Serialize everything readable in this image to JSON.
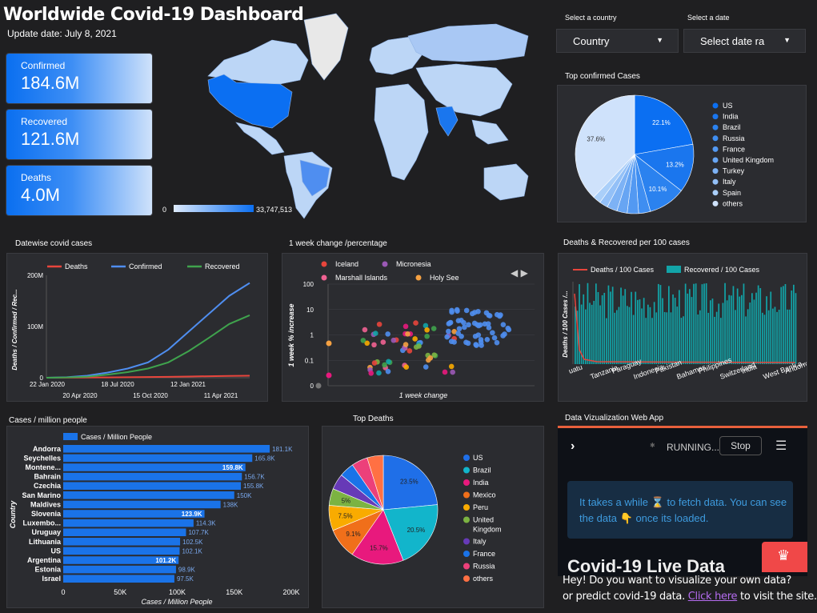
{
  "header": {
    "title": "Worldwide Covid-19 Dashboard",
    "update_date": "Update date:  July 8, 2021"
  },
  "kpis": {
    "confirmed": {
      "label": "Confirmed",
      "value": "184.6M"
    },
    "recovered": {
      "label": "Recovered",
      "value": "121.6M"
    },
    "deaths": {
      "label": "Deaths",
      "value": "4.0M"
    }
  },
  "map": {
    "legend_min": "0",
    "legend_max": "33,747,513"
  },
  "controls": {
    "country_label": "Select a country",
    "country_value": "Country",
    "date_label": "Select a date",
    "date_value": "Select date ra"
  },
  "sections": {
    "top_confirmed": "Top confirmed Cases",
    "datewise": "Datewise covid cases",
    "week_change": "1 week change /percentage",
    "deaths_recovered": "Deaths & Recovered per 100 cases",
    "cases_million": "Cases / million people",
    "top_deaths": "Top Deaths",
    "web_app": "Data Vizualization Web App"
  },
  "web_app": {
    "running": "RUNNING...",
    "stop": "Stop",
    "info_text_1": "It takes a while",
    "info_text_2": "to fetch data. You can",
    "info_text_3": "see the data",
    "info_text_4": "once its loaded.",
    "big_title": "Covid-19 Live Data"
  },
  "footer": {
    "line1": "Hey! Do you want to visualize your own data?",
    "line2": "or predict  covid-19 data.",
    "link": "Click here",
    "line3": "to visit the site."
  },
  "colors": {
    "accent": "#1a73e8",
    "deaths": "#e8453c",
    "confirmed": "#4f8ef0",
    "recovered": "#3fa34d",
    "teal": "#12a4a8"
  },
  "chart_data": [
    {
      "id": "top_confirmed_pie",
      "type": "pie",
      "title": "Top confirmed Cases",
      "labels": [
        "US",
        "India",
        "Brazil",
        "Russia",
        "France",
        "United Kingdom",
        "Turkey",
        "Italy",
        "Spain",
        "others"
      ],
      "values": [
        22.1,
        13.2,
        10.1,
        3.2,
        3.1,
        2.8,
        2.8,
        2.3,
        2.2,
        37.6
      ],
      "value_labels": [
        "22.1%",
        "13.2%",
        "10.1%",
        "",
        "",
        "",
        "",
        "",
        "",
        "37.6%"
      ],
      "colors": [
        "#0b6ff2",
        "#1a76ee",
        "#2b82ef",
        "#3f8ef1",
        "#5399f2",
        "#67a5f3",
        "#7db2f5",
        "#93c0f7",
        "#aacff9",
        "#cfe2fb"
      ]
    },
    {
      "id": "datewise_line",
      "type": "line",
      "title": "Datewise covid cases",
      "ylabel": "Deaths  /  Confirmed  /  Rec...",
      "x_ticks_top": [
        "22 Jan 2020",
        "18 Jul 2020",
        "12 Jan 2021"
      ],
      "x_ticks_bottom": [
        "20 Apr 2020",
        "15 Oct 2020",
        "11 Apr 2021"
      ],
      "y_ticks": [
        "0",
        "100M",
        "200M"
      ],
      "ylim": [
        0,
        200
      ],
      "x": [
        0,
        0.1,
        0.2,
        0.3,
        0.4,
        0.5,
        0.6,
        0.7,
        0.8,
        0.9,
        1.0
      ],
      "series": [
        {
          "name": "Deaths",
          "color": "#e8453c",
          "values": [
            0,
            0.1,
            0.3,
            0.6,
            0.9,
            1.3,
            1.8,
            2.4,
            3.0,
            3.6,
            4.0
          ]
        },
        {
          "name": "Confirmed",
          "color": "#4f8ef0",
          "values": [
            0,
            1,
            4,
            10,
            18,
            30,
            55,
            90,
            125,
            160,
            185
          ]
        },
        {
          "name": "Recovered",
          "color": "#3fa34d",
          "values": [
            0,
            0.5,
            2,
            6,
            11,
            18,
            30,
            52,
            78,
            105,
            122
          ]
        }
      ]
    },
    {
      "id": "week_change_scatter",
      "type": "scatter",
      "title": "1 week change /percentage",
      "xlabel": "1 week change",
      "ylabel": "1 week % increase",
      "y_ticks": [
        "0",
        "0.1",
        "1",
        "10",
        "100"
      ],
      "legend": [
        {
          "name": "Iceland",
          "color": "#e8453c"
        },
        {
          "name": "Micronesia",
          "color": "#9b59b6"
        },
        {
          "name": "Marshall Islands",
          "color": "#f06292"
        },
        {
          "name": "Holy See",
          "color": "#f5a142"
        }
      ],
      "pager": "◀ ▶"
    },
    {
      "id": "deaths_recovered_bar",
      "type": "bar",
      "title": "Deaths & Recovered per 100 cases",
      "ylabel": "Deaths / 100 Cases  /...",
      "categories": [
        "uatu",
        "Tanzania",
        "Paraguay",
        "Indonesia",
        "Pakistan",
        "Bahamas",
        "Philippines",
        "Switzerland",
        "India",
        "West Bank a...",
        "Andorra"
      ],
      "series": [
        {
          "name": "Deaths / 100 Cases",
          "color": "#e8453c"
        },
        {
          "name": "Recovered / 100 Cases",
          "color": "#12a4a8"
        }
      ]
    },
    {
      "id": "cases_million_bar",
      "type": "bar",
      "title": "Cases / million people",
      "series_name": "Cases / Million People",
      "xlabel": "Cases / Million People",
      "ylabel": "Country",
      "xlim": [
        0,
        200000
      ],
      "x_ticks": [
        "0",
        "50K",
        "100K",
        "150K",
        "200K"
      ],
      "categories": [
        "Andorra",
        "Seychelles",
        "Montene...",
        "Bahrain",
        "Czechia",
        "San Marino",
        "Maldives",
        "Slovenia",
        "Luxembo...",
        "Uruguay",
        "Lithuania",
        "US",
        "Argentina",
        "Estonia",
        "Israel"
      ],
      "values": [
        181100,
        165800,
        159800,
        156700,
        155800,
        150000,
        138000,
        123900,
        114300,
        107700,
        102500,
        102100,
        101200,
        98900,
        97500
      ],
      "value_labels": [
        "181.1K",
        "165.8K",
        "159.8K",
        "156.7K",
        "155.8K",
        "150K",
        "138K",
        "123.9K",
        "114.3K",
        "107.7K",
        "102.5K",
        "102.1K",
        "101.2K",
        "98.9K",
        "97.5K"
      ]
    },
    {
      "id": "top_deaths_pie",
      "type": "pie",
      "title": "Top Deaths",
      "labels": [
        "US",
        "Brazil",
        "India",
        "Mexico",
        "Peru",
        "United Kingdom",
        "Italy",
        "France",
        "Russia",
        "others"
      ],
      "values": [
        23.5,
        20.5,
        15.7,
        9.1,
        7.5,
        5.0,
        4.7,
        4.4,
        4.8,
        4.8
      ],
      "value_labels": [
        "23.5%",
        "20.5%",
        "15.7%",
        "9.1%",
        "7.5%",
        "5%",
        "",
        "",
        "",
        ""
      ],
      "colors": [
        "#1f6fe8",
        "#12b5cb",
        "#e8197d",
        "#f06f1a",
        "#f9ab00",
        "#7cb342",
        "#673ab7",
        "#1a73e8",
        "#ec407a",
        "#ff7043"
      ]
    }
  ]
}
